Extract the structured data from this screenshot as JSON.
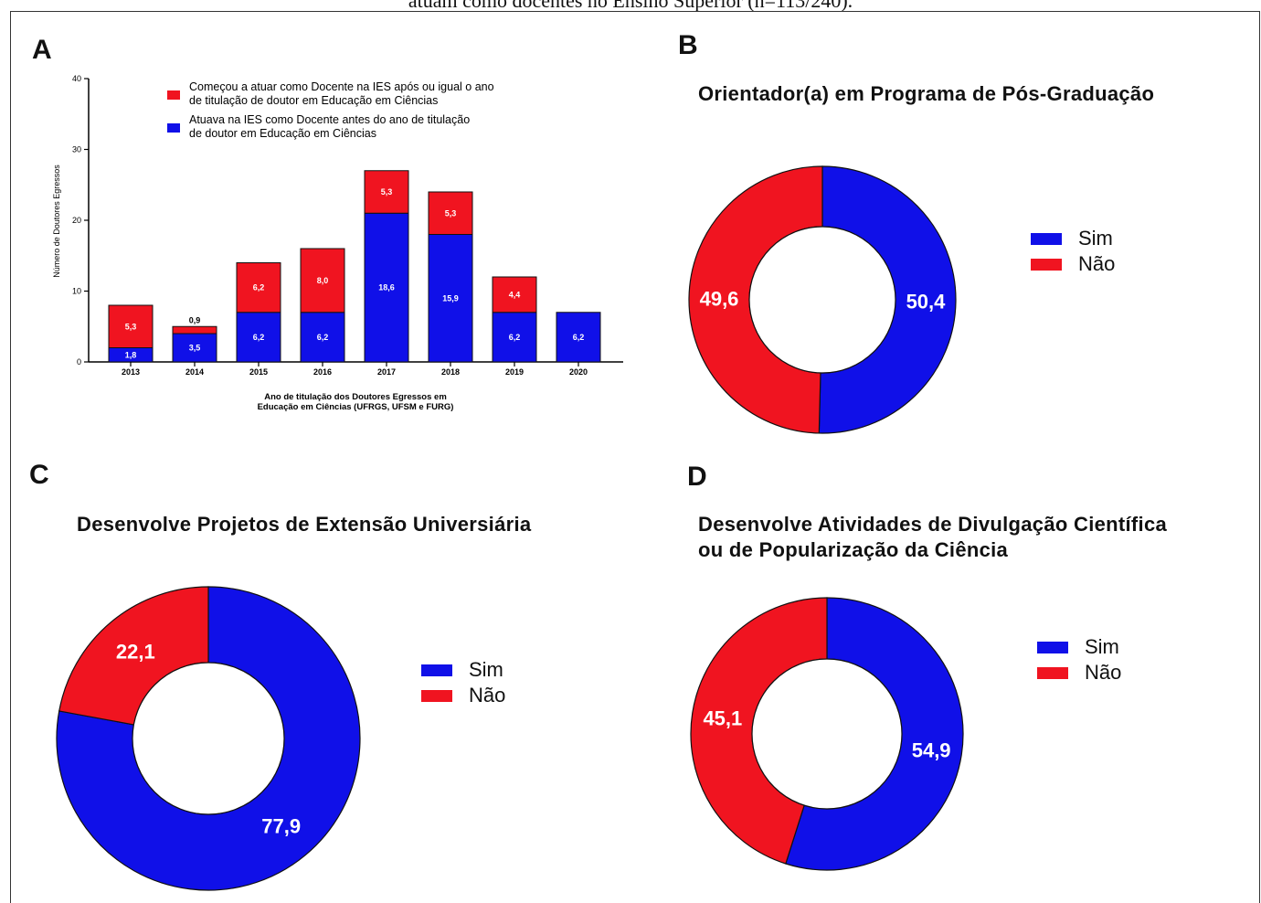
{
  "caption": "atuam como docentes no Ensino Superior (n=113/240).",
  "colors": {
    "red": "#f01420",
    "blue": "#1010e8",
    "white": "#ffffff"
  },
  "chart_data": [
    {
      "panel": "A",
      "type": "bar",
      "stacked": true,
      "ylabel": "Número de Doutores Egressos",
      "xlabel_lines": [
        "Ano de titulação dos Doutores Egressos em",
        "Educação em Ciências (UFRGS, UFSM e FURG)"
      ],
      "ylim": [
        0,
        40
      ],
      "yticks": [
        0,
        10,
        20,
        30,
        40
      ],
      "categories": [
        "2013",
        "2014",
        "2015",
        "2016",
        "2017",
        "2018",
        "2019",
        "2020"
      ],
      "series": [
        {
          "name": "Atuava na IES como Docente antes do ano de titulação de doutor em Educação em Ciências",
          "legend_lines": [
            "Atuava na IES como Docente antes do ano de titulação",
            "de doutor em Educação em Ciências"
          ],
          "color": "#1010e8",
          "values": [
            2,
            4,
            7,
            7,
            21,
            18,
            7,
            7
          ],
          "labels": [
            "1,8",
            "3,5",
            "6,2",
            "6,2",
            "18,6",
            "15,9",
            "6,2",
            "6,2"
          ]
        },
        {
          "name": "Começou a atuar como Docente na IES após ou igual o ano de titulação de doutor em Educação em Ciências",
          "legend_lines": [
            "Começou a atuar como Docente na IES após ou igual o ano",
            "de titulação de doutor em Educação em Ciências"
          ],
          "color": "#f01420",
          "values": [
            6,
            1,
            7,
            9,
            6,
            6,
            5,
            0
          ],
          "labels": [
            "5,3",
            "0,9",
            "6,2",
            "8,0",
            "5,3",
            "5,3",
            "4,4",
            ""
          ]
        }
      ],
      "legend_order": [
        1,
        0
      ],
      "legend_position": "top"
    },
    {
      "panel": "B",
      "type": "pie",
      "donut": true,
      "title": "Orientador(a) em Programa de Pós-Graduação",
      "slices": [
        {
          "label": "Sim",
          "value": 50.4,
          "text": "50,4",
          "color": "#1010e8"
        },
        {
          "label": "Não",
          "value": 49.6,
          "text": "49,6",
          "color": "#f01420"
        }
      ],
      "legend_position": "right"
    },
    {
      "panel": "C",
      "type": "pie",
      "donut": true,
      "title": "Desenvolve Projetos de Extensão Universiária",
      "slices": [
        {
          "label": "Sim",
          "value": 77.9,
          "text": "77,9",
          "color": "#1010e8"
        },
        {
          "label": "Não",
          "value": 22.1,
          "text": "22,1",
          "color": "#f01420"
        }
      ],
      "legend_position": "right"
    },
    {
      "panel": "D",
      "type": "pie",
      "donut": true,
      "title_lines": [
        "Desenvolve Atividades de Divulgação Científica",
        "ou de Popularização da Ciência"
      ],
      "slices": [
        {
          "label": "Sim",
          "value": 54.9,
          "text": "54,9",
          "color": "#1010e8"
        },
        {
          "label": "Não",
          "value": 45.1,
          "text": "45,1",
          "color": "#f01420"
        }
      ],
      "legend_position": "right"
    }
  ]
}
